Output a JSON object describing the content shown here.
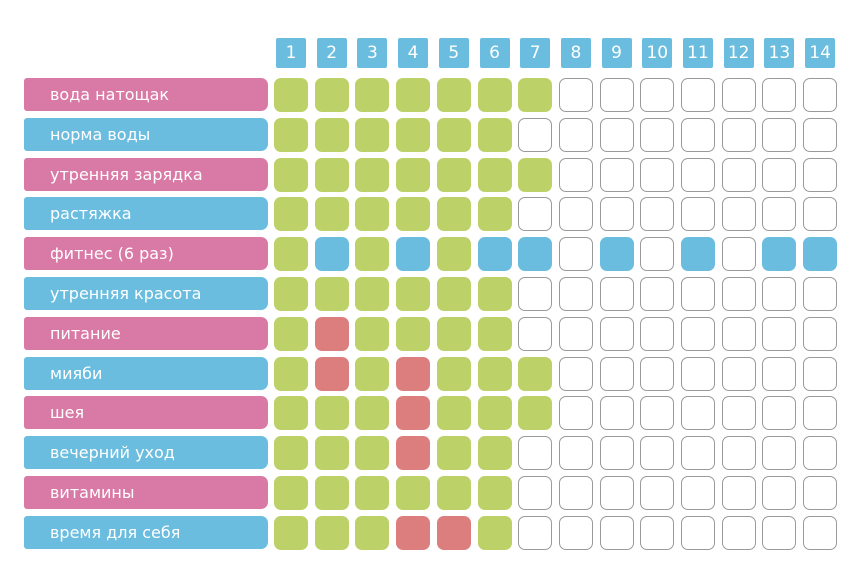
{
  "colors": {
    "header": "#6bbddf",
    "label_pink": "#d97aa6",
    "label_blue": "#6bbddf",
    "done": "#bcd167",
    "workout": "#6bbddf",
    "missed": "#dd7e7e",
    "empty": "#ffffff"
  },
  "days": [
    "1",
    "2",
    "3",
    "4",
    "5",
    "6",
    "7",
    "8",
    "9",
    "10",
    "11",
    "12",
    "13",
    "14"
  ],
  "habits": [
    {
      "label": "вода натощак",
      "color": "pink",
      "cells": "ggggggg-------"
    },
    {
      "label": "норма воды",
      "color": "blue",
      "cells": "gggggg--------"
    },
    {
      "label": "утренняя зарядка",
      "color": "pink",
      "cells": "ggggggg-------"
    },
    {
      "label": "растяжка",
      "color": "blue",
      "cells": "gggggg--------"
    },
    {
      "label": "фитнес (6 раз)",
      "color": "pink",
      "cells": "gbgbgbb-b-b-bb"
    },
    {
      "label": "утренняя красота",
      "color": "blue",
      "cells": "gggggg--------"
    },
    {
      "label": "питание",
      "color": "pink",
      "cells": "grgggg--------"
    },
    {
      "label": "мияби",
      "color": "blue",
      "cells": "grgrggg-------"
    },
    {
      "label": "шея",
      "color": "pink",
      "cells": "gggrggg-------"
    },
    {
      "label": "вечерний уход",
      "color": "blue",
      "cells": "gggrgg--------"
    },
    {
      "label": "витамины",
      "color": "pink",
      "cells": "gggggg--------"
    },
    {
      "label": "время для себя",
      "color": "blue",
      "cells": "gggrrg--------"
    }
  ]
}
